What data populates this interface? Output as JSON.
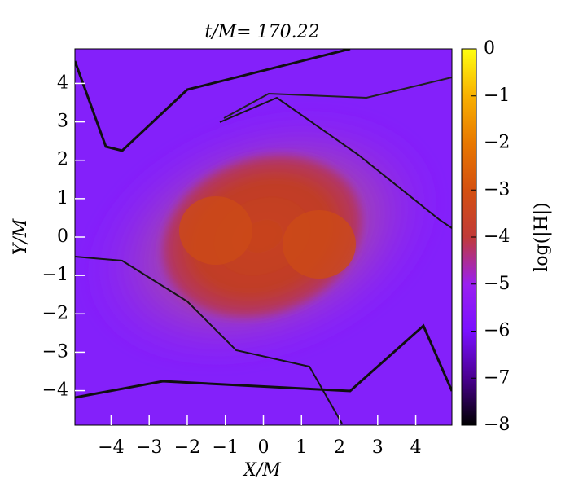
{
  "chart_data": {
    "type": "heatmap",
    "title": "t/M= 170.22",
    "x_label": "X/M",
    "y_label": "Y/M",
    "colorbar_label": "log(|H|)",
    "xlim": [
      -4.95,
      4.95
    ],
    "ylim": [
      -4.9,
      4.9
    ],
    "xticks": [
      {
        "value": -4,
        "label": "−4"
      },
      {
        "value": -3,
        "label": "−3"
      },
      {
        "value": -2,
        "label": "−2"
      },
      {
        "value": -1,
        "label": "−1"
      },
      0,
      1,
      2,
      3,
      4
    ],
    "yticks": [
      {
        "value": -4,
        "label": "−4"
      },
      {
        "value": -3,
        "label": "−3"
      },
      {
        "value": -2,
        "label": "−2"
      },
      {
        "value": -1,
        "label": "−1"
      },
      0,
      1,
      2,
      3,
      4
    ],
    "clim": [
      -8,
      0
    ],
    "cticks": [
      {
        "value": -8,
        "label": "−8"
      },
      {
        "value": -7,
        "label": "−7"
      },
      {
        "value": -6,
        "label": "−6"
      },
      {
        "value": -5,
        "label": "−5"
      },
      {
        "value": -4,
        "label": "−4"
      },
      {
        "value": -3,
        "label": "−3"
      },
      {
        "value": -2,
        "label": "−2"
      },
      {
        "value": -1,
        "label": "−1"
      },
      0
    ],
    "colormap": [
      "#000000",
      "#4a0090",
      "#7a10ff",
      "#9a20f0",
      "#c03a38",
      "#d45010",
      "#e87800",
      "#f8b000",
      "#ffff10"
    ]
  }
}
